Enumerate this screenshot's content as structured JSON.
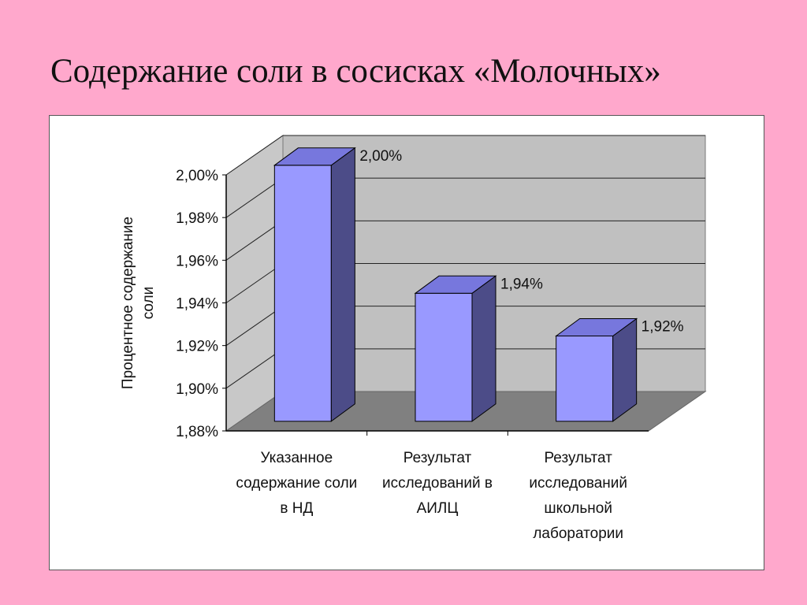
{
  "slide": {
    "title": "Содержание соли в сосисках «Молочных»"
  },
  "chart_data": {
    "type": "bar",
    "title": "",
    "ylabel": "Процентное содержание соли",
    "ylabel_lines": [
      "Процентное содержание",
      "соли"
    ],
    "xlabel": "",
    "ylim": [
      1.88,
      2.0
    ],
    "yticks": [
      2.0,
      1.98,
      1.96,
      1.94,
      1.92,
      1.9,
      1.88
    ],
    "ytick_labels": [
      "2,00%",
      "1,98%",
      "1,96%",
      "1,94%",
      "1,92%",
      "1,90%",
      "1,88%"
    ],
    "categories": [
      "Указанное содержание соли в НД",
      "Результат исследований в АИЛЦ",
      "Результат исследований школьной лаборатории"
    ],
    "category_lines": [
      [
        "Указанное",
        "содержание соли",
        "в НД"
      ],
      [
        "Результат",
        "исследований в",
        "АИЛЦ"
      ],
      [
        "Результат",
        "исследований",
        "школьной",
        "лаборатории"
      ]
    ],
    "values": [
      2.0,
      1.94,
      1.92
    ],
    "data_labels": [
      "2,00%",
      "1,94%",
      "1,92%"
    ],
    "legend": "none",
    "grid": true,
    "style": "3d",
    "colors": {
      "bar_front": "#9999ff",
      "bar_top": "#7777dd",
      "bar_side": "#4c4c88",
      "back_wall": "#c0c0c0",
      "side_wall": "#c8c8c8",
      "floor": "#808080"
    }
  }
}
